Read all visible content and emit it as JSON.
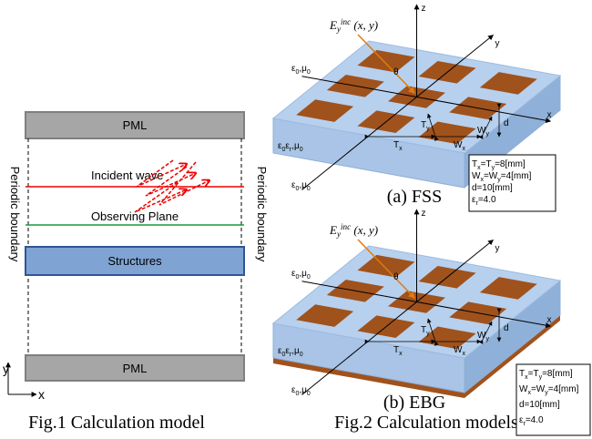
{
  "fig1": {
    "pml_top": "PML",
    "incident_wave": "Incident wave",
    "observing_plane": "Observing Plane",
    "structures": "Structures",
    "pml_bottom": "PML",
    "boundary_left": "Periodic boundary",
    "boundary_right": "Periodic boundary",
    "axis_y": "y",
    "axis_x": "x",
    "caption": "Fig.1 Calculation model"
  },
  "fig2": {
    "caption": "Fig.2 Calculation models",
    "panels": [
      {
        "label": "(a)  FSS",
        "axis_z": "z",
        "axis_x": "x",
        "axis_y": "y",
        "field": [
          {
            "text": "E"
          },
          {
            "text": "y",
            "pos": "sub"
          },
          {
            "text": "inc",
            "pos": "sup"
          },
          {
            "text": " (x, y)"
          }
        ],
        "angle": "θ",
        "medium_top": [
          {
            "text": "ε"
          },
          {
            "text": "0",
            "pos": "sub"
          },
          {
            "text": ",μ"
          },
          {
            "text": "0",
            "pos": "sub"
          }
        ],
        "medium_slab": [
          {
            "text": "ε"
          },
          {
            "text": "0",
            "pos": "sub"
          },
          {
            "text": "ε"
          },
          {
            "text": "r",
            "pos": "sub"
          },
          {
            "text": ",μ"
          },
          {
            "text": "0",
            "pos": "sub"
          }
        ],
        "medium_bottom": [
          {
            "text": "ε"
          },
          {
            "text": "0",
            "pos": "sub"
          },
          {
            "text": ",μ"
          },
          {
            "text": "0",
            "pos": "sub"
          }
        ],
        "dim_tx": [
          {
            "text": "T"
          },
          {
            "text": "x",
            "pos": "sub"
          }
        ],
        "dim_ty": [
          {
            "text": "T"
          },
          {
            "text": "y",
            "pos": "sub"
          }
        ],
        "dim_wx": [
          {
            "text": "W"
          },
          {
            "text": "x",
            "pos": "sub"
          }
        ],
        "dim_wy": [
          {
            "text": "W"
          },
          {
            "text": "y",
            "pos": "sub"
          }
        ],
        "dim_d": "d",
        "params": [
          [
            {
              "text": "T"
            },
            {
              "text": "x",
              "pos": "sub"
            },
            {
              "text": "=T"
            },
            {
              "text": "y",
              "pos": "sub"
            },
            {
              "text": "=8[mm]"
            }
          ],
          [
            {
              "text": "W"
            },
            {
              "text": "x",
              "pos": "sub"
            },
            {
              "text": "=W"
            },
            {
              "text": "y",
              "pos": "sub"
            },
            {
              "text": "=4[mm]"
            }
          ],
          [
            {
              "text": "d=10[mm]"
            }
          ],
          [
            {
              "text": "ε"
            },
            {
              "text": "r",
              "pos": "sub"
            },
            {
              "text": "=4.0"
            }
          ]
        ]
      },
      {
        "label": "(b)  EBG",
        "axis_z": "z",
        "axis_x": "x",
        "axis_y": "y",
        "field": [
          {
            "text": "E"
          },
          {
            "text": "y",
            "pos": "sub"
          },
          {
            "text": "inc",
            "pos": "sup"
          },
          {
            "text": " (x, y)"
          }
        ],
        "angle": "θ",
        "medium_top": [
          {
            "text": "ε"
          },
          {
            "text": "0",
            "pos": "sub"
          },
          {
            "text": ",μ"
          },
          {
            "text": "0",
            "pos": "sub"
          }
        ],
        "medium_slab": [
          {
            "text": "ε"
          },
          {
            "text": "0",
            "pos": "sub"
          },
          {
            "text": "ε"
          },
          {
            "text": "r",
            "pos": "sub"
          },
          {
            "text": ",μ"
          },
          {
            "text": "0",
            "pos": "sub"
          }
        ],
        "medium_bottom": [
          {
            "text": "ε"
          },
          {
            "text": "0",
            "pos": "sub"
          },
          {
            "text": ",μ"
          },
          {
            "text": "0",
            "pos": "sub"
          }
        ],
        "dim_tx": [
          {
            "text": "T"
          },
          {
            "text": "x",
            "pos": "sub"
          }
        ],
        "dim_ty": [
          {
            "text": "T"
          },
          {
            "text": "y",
            "pos": "sub"
          }
        ],
        "dim_wx": [
          {
            "text": "W"
          },
          {
            "text": "x",
            "pos": "sub"
          }
        ],
        "dim_wy": [
          {
            "text": "W"
          },
          {
            "text": "y",
            "pos": "sub"
          }
        ],
        "dim_d": "d",
        "params": [
          [
            {
              "text": "T"
            },
            {
              "text": "x",
              "pos": "sub"
            },
            {
              "text": "=T"
            },
            {
              "text": "y",
              "pos": "sub"
            },
            {
              "text": "=8[mm]"
            }
          ],
          [
            {
              "text": "W"
            },
            {
              "text": "x",
              "pos": "sub"
            },
            {
              "text": "=W"
            },
            {
              "text": "y",
              "pos": "sub"
            },
            {
              "text": "=4[mm]"
            }
          ],
          [
            {
              "text": "d=10[mm]"
            }
          ],
          [
            {
              "text": "ε"
            },
            {
              "text": "r",
              "pos": "sub"
            },
            {
              "text": "=4.0"
            }
          ]
        ]
      }
    ]
  }
}
